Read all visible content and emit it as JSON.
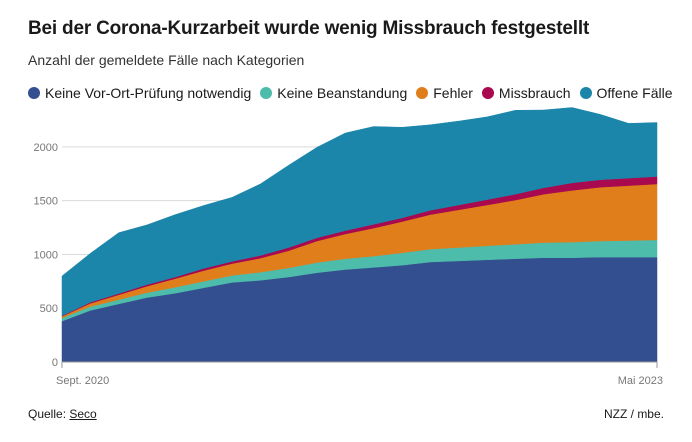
{
  "title": "Bei der Corona-Kurzarbeit wurde wenig Missbrauch festgestellt",
  "subtitle": "Anzahl der gemeldete Fälle nach Kategorien",
  "footer": {
    "source_label": "Quelle: ",
    "source_name": "Seco",
    "credit": "NZZ / mbe."
  },
  "chart_data": {
    "type": "area",
    "stacked": true,
    "title": "Bei der Corona-Kurzarbeit wurde wenig Missbrauch festgestellt",
    "subtitle": "Anzahl der gemeldete Fälle nach Kategorien",
    "x_tick_labels": [
      "Sept. 2020",
      "Mai 2023"
    ],
    "y_ticks": [
      "0",
      "500",
      "1000",
      "1500",
      "2000"
    ],
    "ylim": [
      0,
      2250
    ],
    "grid": true,
    "legend_position": "top",
    "series": [
      {
        "name": "Keine Vor-Ort-Prüfung notwendig",
        "color": "#344f8f",
        "values": [
          380,
          480,
          540,
          600,
          640,
          690,
          740,
          760,
          790,
          830,
          860,
          880,
          900,
          930,
          940,
          950,
          960,
          970,
          970,
          975,
          975,
          975
        ]
      },
      {
        "name": "Keine Beanstandung",
        "color": "#4dbcaa",
        "values": [
          30,
          35,
          40,
          45,
          55,
          60,
          65,
          75,
          85,
          95,
          100,
          105,
          115,
          120,
          125,
          130,
          135,
          140,
          145,
          150,
          155,
          160
        ]
      },
      {
        "name": "Fehler",
        "color": "#e07e1c",
        "values": [
          15,
          30,
          45,
          60,
          80,
          100,
          110,
          130,
          160,
          200,
          230,
          260,
          290,
          320,
          350,
          380,
          410,
          450,
          480,
          500,
          510,
          520
        ]
      },
      {
        "name": "Missbrauch",
        "color": "#a8094f",
        "values": [
          5,
          10,
          12,
          15,
          15,
          20,
          20,
          25,
          30,
          30,
          32,
          35,
          35,
          40,
          45,
          50,
          55,
          60,
          70,
          70,
          70,
          70
        ]
      },
      {
        "name": "Offene Fälle",
        "color": "#1b86aa",
        "values": [
          370,
          455,
          565,
          555,
          580,
          585,
          595,
          665,
          765,
          841,
          907,
          910,
          842,
          795,
          780,
          769,
          780,
          723,
          701,
          607,
          508,
          502
        ]
      }
    ]
  }
}
